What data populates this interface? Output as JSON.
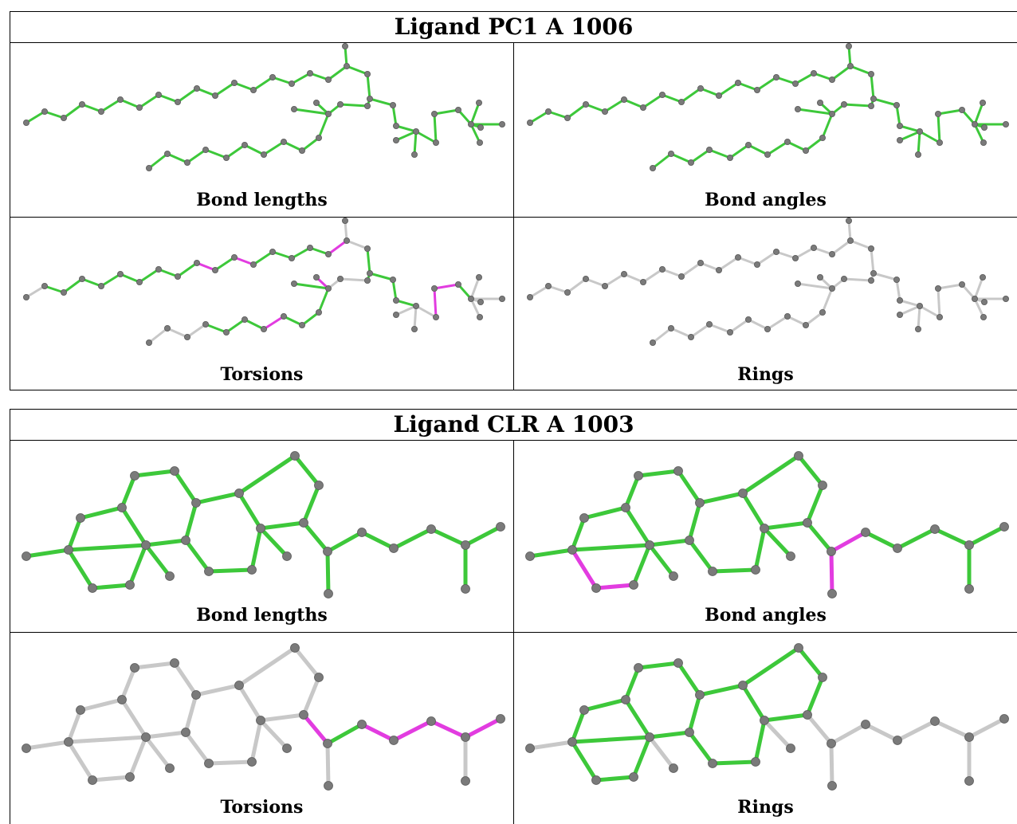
{
  "colors": {
    "ok": "#3dc83a",
    "outlier": "#e23ce0",
    "notapplicable": "#c8c8c8",
    "atom": "#7a7a7a"
  },
  "tables": [
    {
      "title": "Ligand PC1 A 1006",
      "panels": [
        {
          "label": "Bond lengths",
          "status": "all bonds ok"
        },
        {
          "label": "Bond angles",
          "status": "all bonds ok"
        },
        {
          "label": "Torsions",
          "status": "torsion outliers highlighted"
        },
        {
          "label": "Rings",
          "status": "no rings"
        }
      ]
    },
    {
      "title": "Ligand CLR A 1003",
      "panels": [
        {
          "label": "Bond lengths",
          "status": "all bonds ok"
        },
        {
          "label": "Bond angles",
          "status": "angle outliers highlighted"
        },
        {
          "label": "Torsions",
          "status": "torsion outliers highlighted"
        },
        {
          "label": "Rings",
          "status": "ring bonds ok"
        }
      ]
    }
  ]
}
